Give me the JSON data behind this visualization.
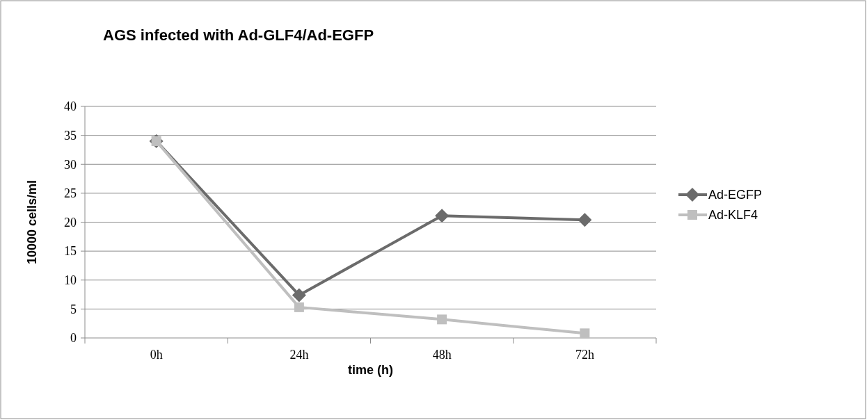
{
  "chart_data": {
    "type": "line",
    "title": "AGS infected with Ad-GLF4/Ad-EGFP",
    "xlabel": "time (h)",
    "ylabel": "10000 cells/ml",
    "categories": [
      "0h",
      "24h",
      "48h",
      "72h"
    ],
    "series": [
      {
        "name": "Ad-EGFP",
        "color": "#6b6b6b",
        "marker": "diamond",
        "values": [
          34,
          7.4,
          21.1,
          20.4
        ]
      },
      {
        "name": "Ad-KLF4",
        "color": "#bfbfbf",
        "marker": "square",
        "values": [
          34,
          5.3,
          3.2,
          0.8
        ]
      }
    ],
    "ylim": [
      0,
      40
    ],
    "yticks": [
      0,
      5,
      10,
      15,
      20,
      25,
      30,
      35,
      40
    ],
    "grid": "y",
    "legend": "right",
    "line_style": "solid"
  }
}
